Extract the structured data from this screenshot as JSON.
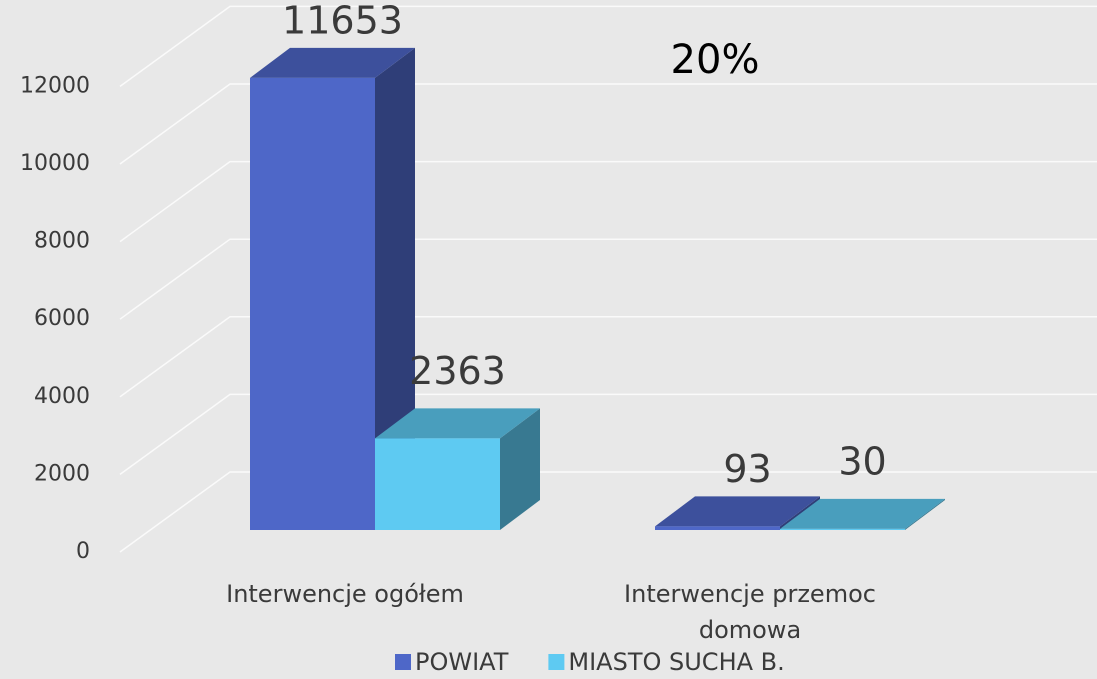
{
  "chart_data": {
    "type": "bar3d",
    "annotation": "20%",
    "categories": [
      "Interwencje ogółem",
      "Interwencje przemoc domowa"
    ],
    "series": [
      {
        "name": "POWIAT",
        "color": "#4e67c8",
        "values": [
          11653,
          93
        ]
      },
      {
        "name": "MIASTO SUCHA B.",
        "color": "#5ecaf2",
        "values": [
          2363,
          30
        ]
      }
    ],
    "ylim": [
      0,
      14000
    ],
    "yticks": [
      0,
      2000,
      4000,
      6000,
      8000,
      10000,
      12000
    ],
    "grid": true,
    "legend": "bottom"
  }
}
